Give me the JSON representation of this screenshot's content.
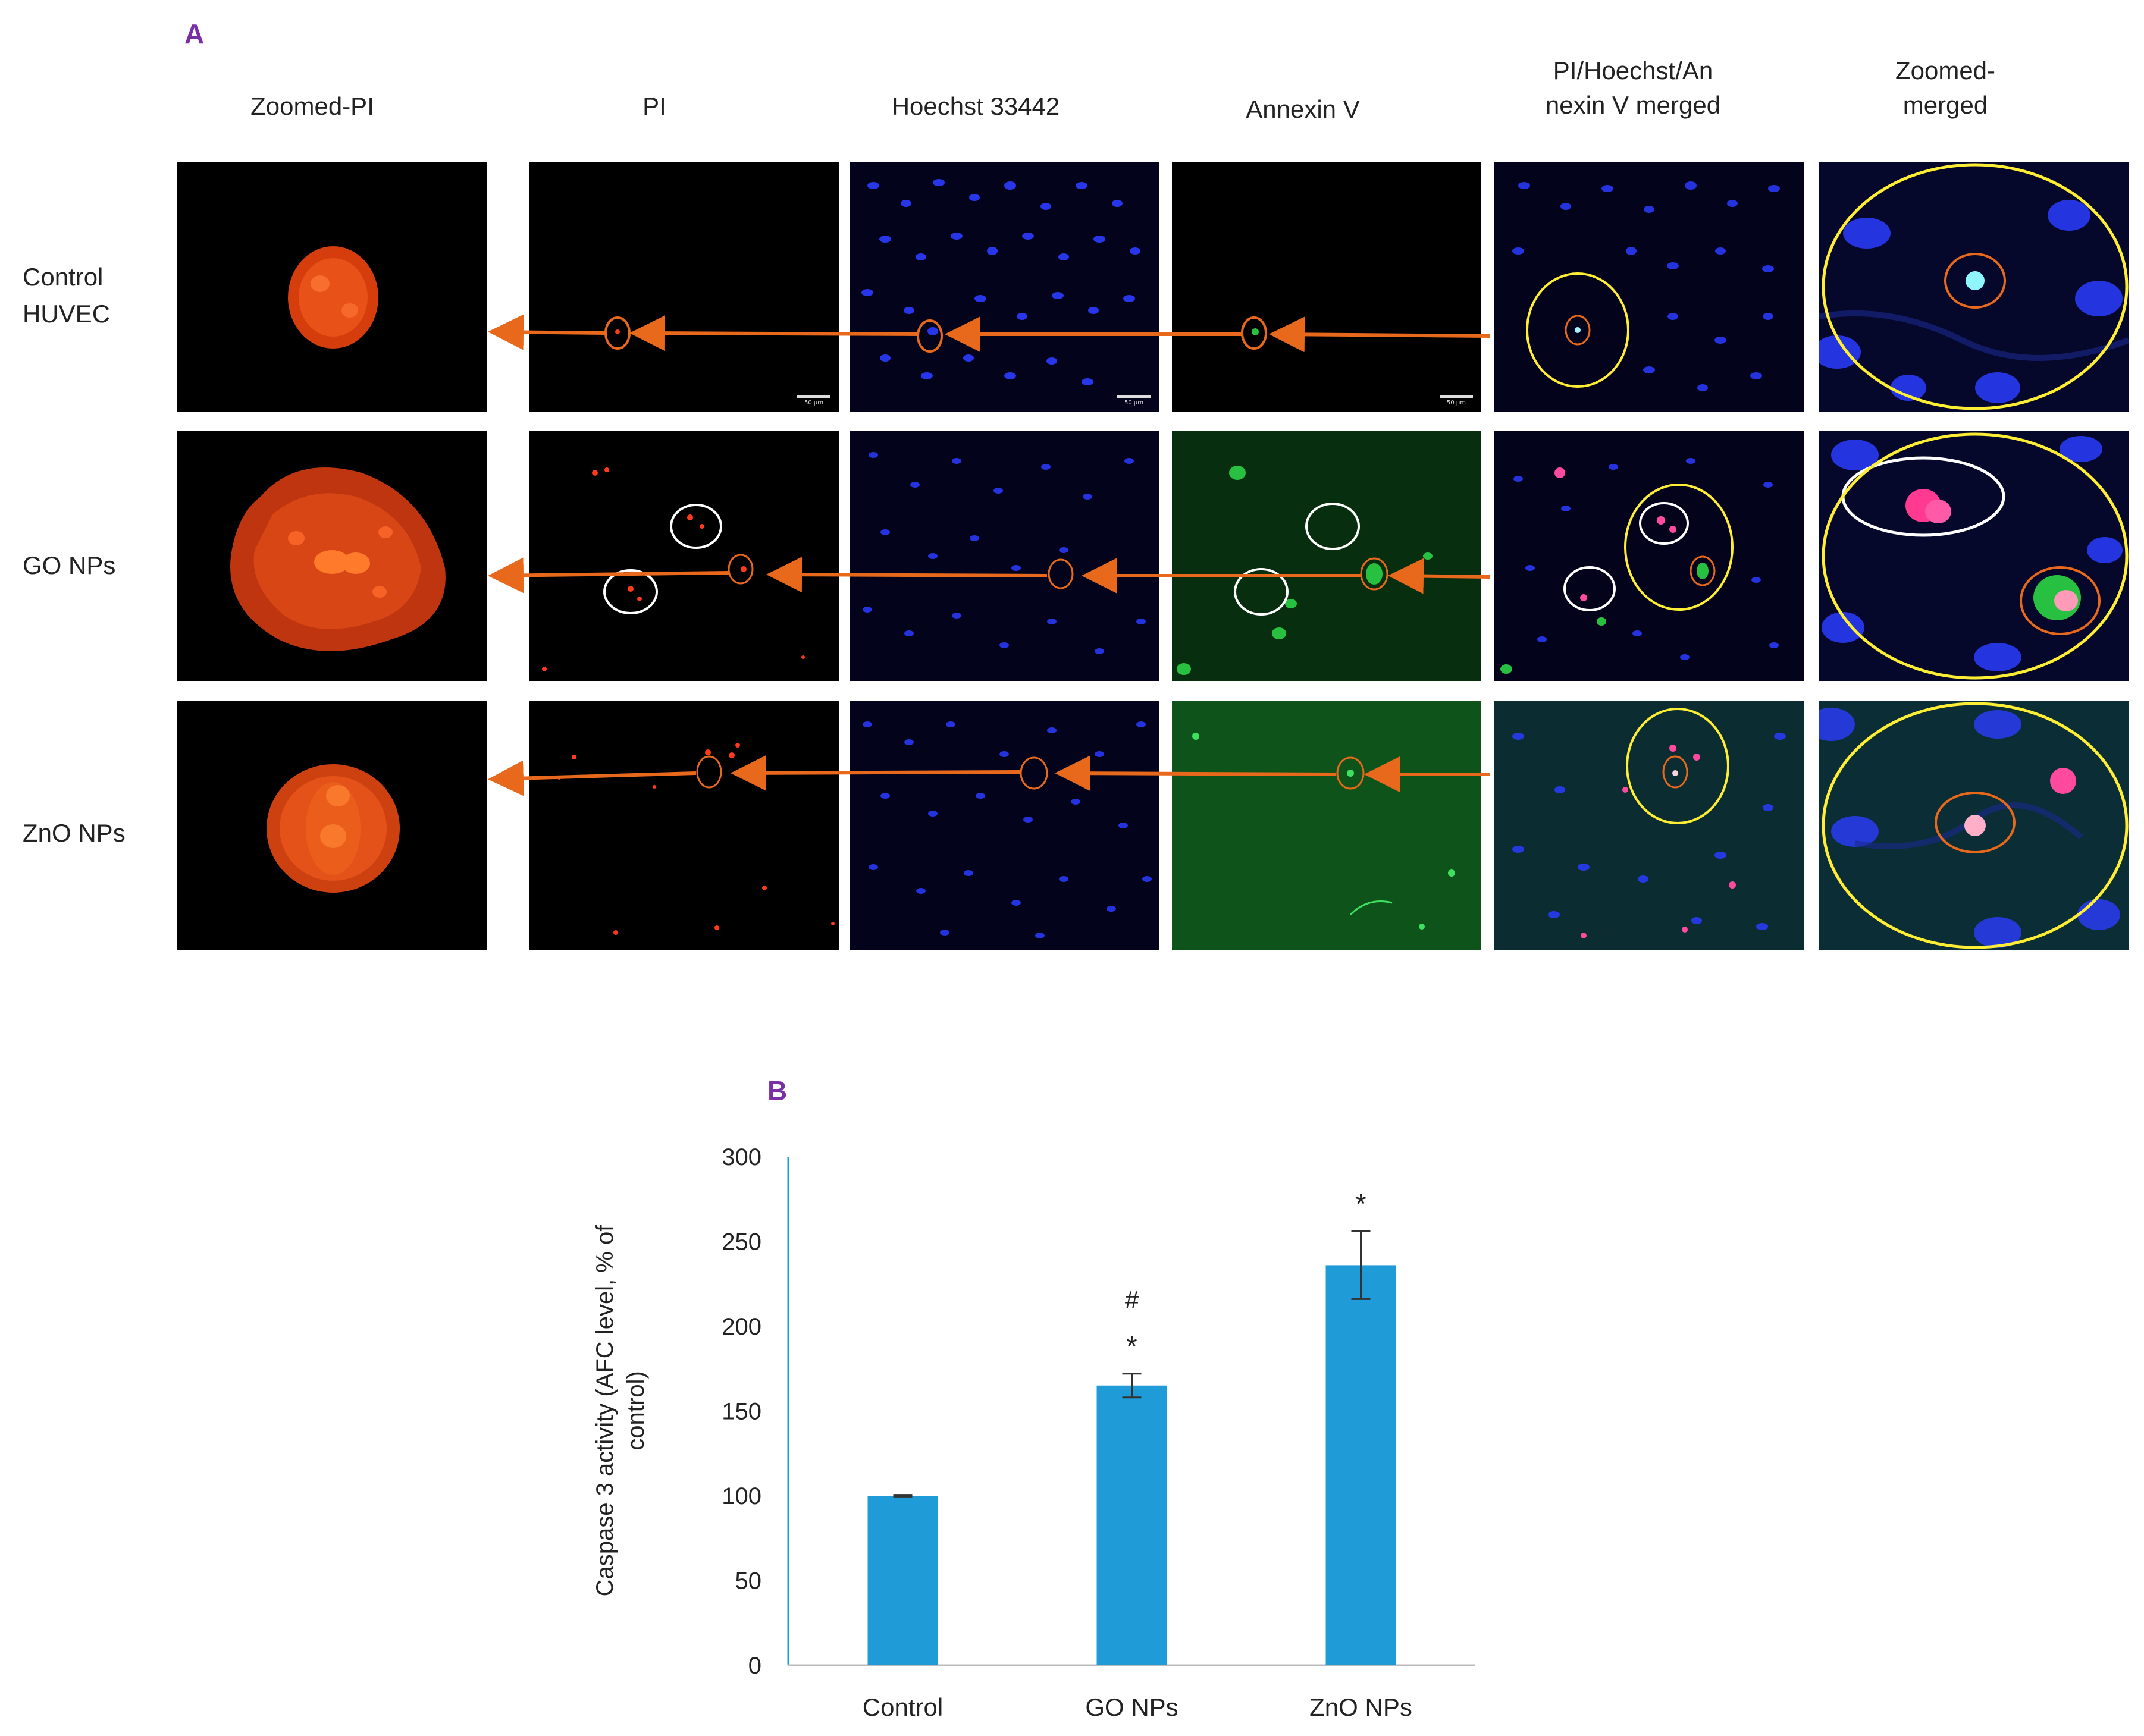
{
  "figure": {
    "panel_a": {
      "letter": "A",
      "columns": [
        "Zoomed-PI",
        "PI",
        "Hoechst 33442",
        "Annexin V",
        "PI/Hoechst/An\nnexin V merged",
        "Zoomed-\nmerged"
      ],
      "rows": [
        "Control\nHUVEC",
        "GO NPs",
        "ZnO NPs"
      ],
      "scale_bar_label": "50 µm",
      "colors": {
        "arrow": "#e8681c",
        "pi": "#ff3a1a",
        "hoechst": "#2a3cff",
        "annexin": "#28c040",
        "merged_circle": "#ffee33",
        "white_circle": "#ffffff"
      }
    },
    "panel_b": {
      "letter": "B"
    }
  },
  "chart_data": {
    "type": "bar",
    "categories": [
      "Control",
      "GO NPs",
      "ZnO NPs"
    ],
    "values": [
      100,
      165,
      236
    ],
    "errors": [
      0.5,
      7,
      20
    ],
    "annotations": [
      [],
      [
        "*",
        "#"
      ],
      [
        "*"
      ]
    ],
    "ylabel": "Caspase 3 activity (AFC level, % of control)",
    "ylim": [
      0,
      300
    ],
    "yticks": [
      0,
      50,
      100,
      150,
      200,
      250,
      300
    ],
    "bar_color": "#1f9cd8",
    "grid": false
  }
}
